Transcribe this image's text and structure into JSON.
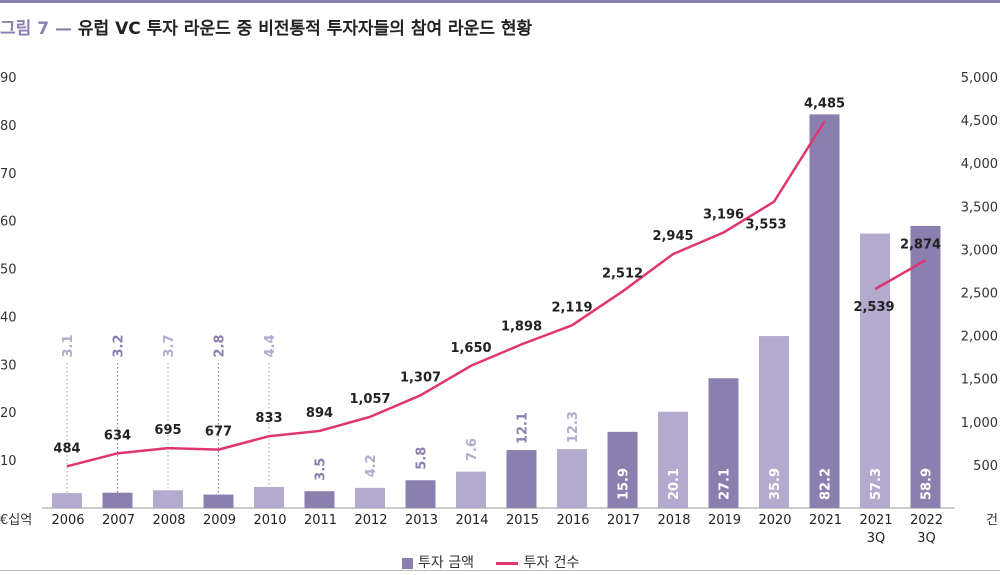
{
  "header": {
    "figure_label": "그림 7 — ",
    "title": "유럽 VC 투자 라운드 중 비전통적 투자자들의 참여 라운드 현황"
  },
  "chart_data": {
    "type": "bar",
    "categories": [
      "2006",
      "2007",
      "2008",
      "2009",
      "2010",
      "2011",
      "2012",
      "2013",
      "2014",
      "2015",
      "2016",
      "2017",
      "2018",
      "2019",
      "2020",
      "2021",
      "2021\n3Q",
      "2022\n3Q"
    ],
    "series": [
      {
        "name": "투자 금액",
        "type": "bar",
        "axis": "left",
        "values": [
          3.1,
          3.2,
          3.7,
          2.8,
          4.4,
          3.5,
          4.2,
          5.8,
          7.6,
          12.1,
          12.3,
          15.9,
          20.1,
          27.1,
          35.9,
          82.2,
          57.3,
          58.9
        ],
        "value_labels": [
          "3.1",
          "3.2",
          "3.7",
          "2.8",
          "4.4",
          "3.5",
          "4.2",
          "5.8",
          "7.6",
          "12.1",
          "12.3",
          "15.9",
          "20.1",
          "27.1",
          "35.9",
          "82.2",
          "57.3",
          "58.9"
        ],
        "colors": [
          "#b3aacd",
          "#8a7fae",
          "#b3aacd",
          "#8a7fae",
          "#b3aacd",
          "#8a7fae",
          "#b3aacd",
          "#8a7fae",
          "#b3aacd",
          "#8a7fae",
          "#b3aacd",
          "#8a7fae",
          "#b3aacd",
          "#8a7fae",
          "#b3aacd",
          "#8a7fae",
          "#b3aacd",
          "#8a7fae"
        ]
      },
      {
        "name": "투자 건수",
        "type": "line",
        "axis": "right",
        "color": "#e0356e",
        "values": [
          484,
          634,
          695,
          677,
          833,
          894,
          1057,
          1307,
          1650,
          1898,
          2119,
          2512,
          2945,
          3196,
          3553,
          4485,
          2539,
          2874
        ],
        "value_labels": [
          "484",
          "634",
          "695",
          "677",
          "833",
          "894",
          "1,057",
          "1,307",
          "1,650",
          "1,898",
          "2,119",
          "2,512",
          "2,945",
          "3,196",
          "3,553",
          "4,485",
          "2,539",
          "2,874"
        ],
        "segments": [
          [
            0,
            15
          ],
          [
            16,
            17
          ]
        ]
      }
    ],
    "y_left": {
      "ticks": [
        "90",
        "80",
        "70",
        "60",
        "50",
        "40",
        "30",
        "20",
        "10"
      ],
      "tick_values": [
        90,
        80,
        70,
        60,
        50,
        40,
        30,
        20,
        10
      ],
      "unit": "€십억",
      "range": [
        0,
        90
      ]
    },
    "y_right": {
      "ticks": [
        "5,000",
        "4,500",
        "4,000",
        "3,500",
        "3,000",
        "2,500",
        "2,000",
        "1,500",
        "1,000",
        "500"
      ],
      "tick_values": [
        5000,
        4500,
        4000,
        3500,
        3000,
        2500,
        2000,
        1500,
        1000,
        500
      ],
      "unit": "건",
      "range": [
        0,
        5000
      ]
    },
    "legend": {
      "position": "bottom-center",
      "items": [
        "투자 금액",
        "투자 건수"
      ]
    },
    "grid": false
  }
}
